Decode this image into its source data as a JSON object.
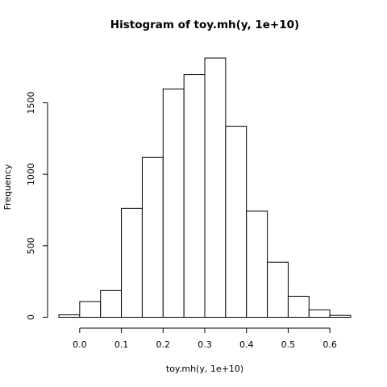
{
  "chart_data": {
    "type": "bar",
    "title": "Histogram of toy.mh(y, 1e+10)",
    "xlabel": "toy.mh(y, 1e+10)",
    "ylabel": "Frequency",
    "bin_edges": [
      -0.05,
      0.0,
      0.05,
      0.1,
      0.15,
      0.2,
      0.25,
      0.3,
      0.35,
      0.4,
      0.45,
      0.5,
      0.55,
      0.6,
      0.65
    ],
    "values": [
      17,
      110,
      187,
      762,
      1118,
      1597,
      1697,
      1813,
      1336,
      742,
      385,
      147,
      52,
      13
    ],
    "xlim": [
      -0.05,
      0.65
    ],
    "ylim": [
      0,
      1813
    ],
    "x_ticks": [
      0.0,
      0.1,
      0.2,
      0.3,
      0.4,
      0.5,
      0.6
    ],
    "x_tick_labels": [
      "0.0",
      "0.1",
      "0.2",
      "0.3",
      "0.4",
      "0.5",
      "0.6"
    ],
    "y_ticks": [
      0,
      500,
      1000,
      1500
    ],
    "y_tick_labels": [
      "0",
      "500",
      "1000",
      "1500"
    ],
    "grid": false,
    "legend": "none"
  }
}
